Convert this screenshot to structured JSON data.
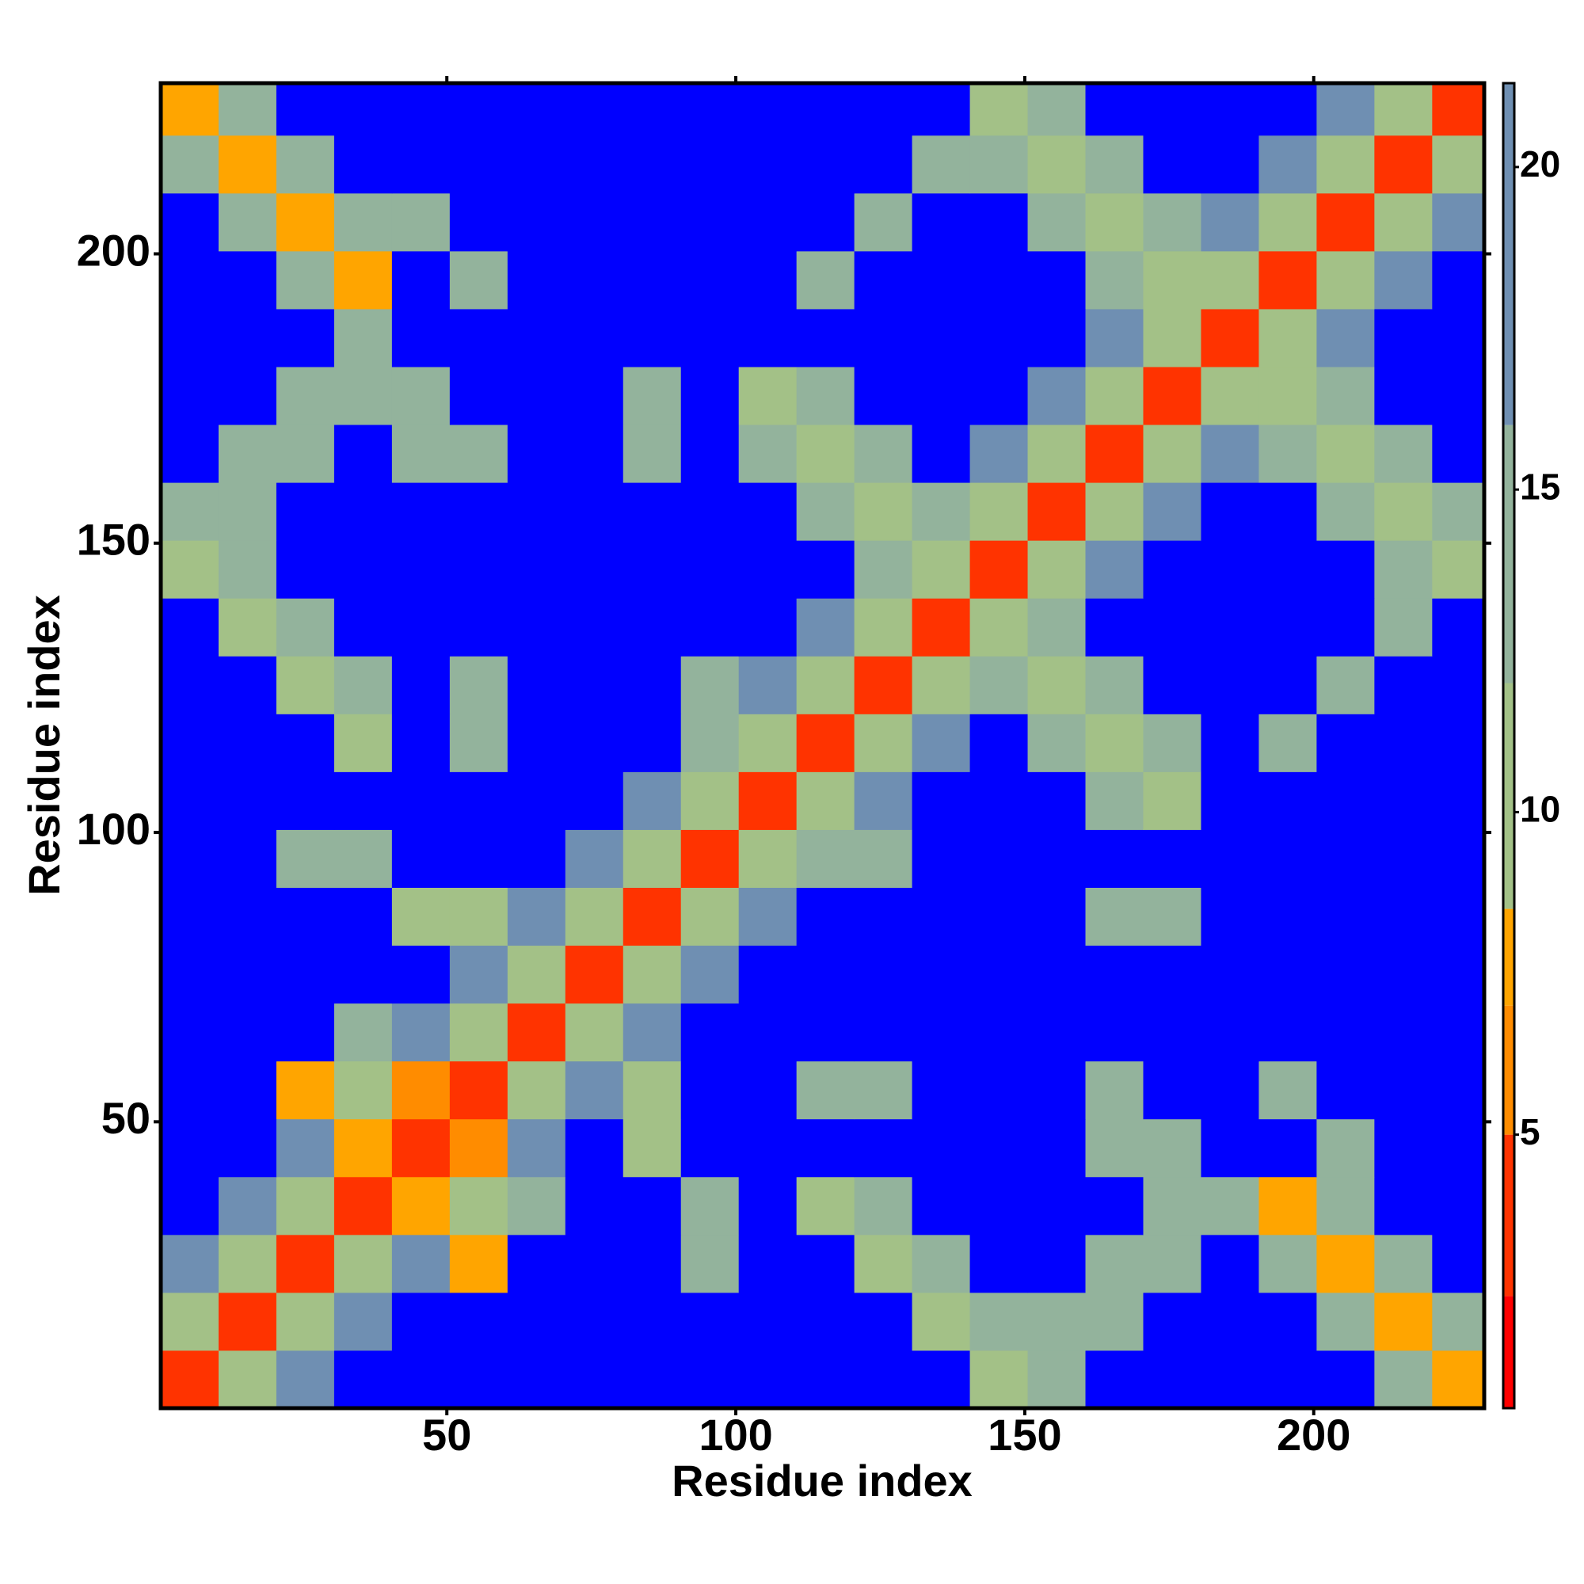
{
  "chart_data": {
    "type": "heatmap",
    "xlabel": "Residue index",
    "ylabel": "Residue index",
    "x": [
      5.5,
      15.5,
      25.5,
      35.5,
      45.5,
      55.5,
      65.5,
      75.5,
      85.5,
      95.5,
      105.5,
      115.5,
      125.5,
      135.5,
      145.5,
      155.5,
      165.5,
      175.5,
      185.5,
      195.5,
      205.5,
      215.5,
      225.5
    ],
    "y": [
      5.5,
      15.5,
      25.5,
      35.5,
      45.5,
      55.5,
      65.5,
      75.5,
      85.5,
      95.5,
      105.5,
      115.5,
      125.5,
      135.5,
      145.5,
      155.5,
      165.5,
      175.5,
      185.5,
      195.5,
      205.5,
      215.5,
      225.5
    ],
    "z": [
      [
        4,
        9,
        17,
        22,
        22,
        22,
        22,
        22,
        22,
        22,
        22,
        22,
        22,
        22,
        12,
        13,
        22,
        22,
        22,
        22,
        22,
        13,
        8
      ],
      [
        9,
        4,
        9,
        17,
        22,
        22,
        22,
        22,
        22,
        22,
        22,
        22,
        22,
        12,
        15,
        15,
        13,
        22,
        22,
        22,
        13,
        8,
        13
      ],
      [
        17,
        9,
        4,
        9,
        17,
        8,
        22,
        22,
        22,
        15,
        22,
        22,
        12,
        15,
        22,
        22,
        15,
        13,
        22,
        13,
        8,
        13,
        22
      ],
      [
        22,
        17,
        9,
        4,
        8,
        9,
        16,
        22,
        22,
        15,
        22,
        12,
        15,
        22,
        22,
        22,
        22,
        15,
        13,
        8,
        13,
        22,
        22
      ],
      [
        22,
        22,
        17,
        8,
        4,
        7,
        17,
        22,
        12,
        22,
        22,
        22,
        22,
        22,
        22,
        22,
        15,
        15,
        22,
        22,
        15,
        22,
        22
      ],
      [
        22,
        22,
        8,
        9,
        7,
        4,
        9,
        17,
        9,
        22,
        22,
        15,
        15,
        22,
        22,
        22,
        15,
        22,
        22,
        15,
        22,
        22,
        22
      ],
      [
        22,
        22,
        22,
        16,
        17,
        9,
        4,
        9,
        17,
        22,
        22,
        22,
        22,
        22,
        22,
        22,
        22,
        22,
        22,
        22,
        22,
        22,
        22
      ],
      [
        22,
        22,
        22,
        22,
        22,
        17,
        9,
        4,
        9,
        17,
        22,
        22,
        22,
        22,
        22,
        22,
        22,
        22,
        22,
        22,
        22,
        22,
        22
      ],
      [
        22,
        22,
        22,
        22,
        12,
        9,
        17,
        9,
        4,
        9,
        17,
        22,
        22,
        22,
        22,
        22,
        15,
        15,
        22,
        22,
        22,
        22,
        22
      ],
      [
        22,
        22,
        15,
        15,
        22,
        22,
        22,
        17,
        9,
        4,
        9,
        15,
        15,
        22,
        22,
        22,
        22,
        22,
        22,
        22,
        22,
        22,
        22
      ],
      [
        22,
        22,
        22,
        22,
        22,
        22,
        22,
        22,
        17,
        9,
        4,
        9,
        17,
        22,
        22,
        22,
        13,
        9,
        22,
        22,
        22,
        22,
        22
      ],
      [
        22,
        22,
        22,
        12,
        22,
        15,
        22,
        22,
        22,
        15,
        9,
        4,
        9,
        17,
        22,
        13,
        9,
        13,
        22,
        14,
        22,
        22,
        22
      ],
      [
        22,
        22,
        12,
        15,
        22,
        15,
        22,
        22,
        22,
        15,
        17,
        9,
        4,
        9,
        13,
        9,
        13,
        22,
        22,
        22,
        14,
        22,
        22
      ],
      [
        22,
        12,
        15,
        22,
        22,
        22,
        22,
        22,
        22,
        22,
        22,
        17,
        9,
        4,
        9,
        13,
        22,
        22,
        22,
        22,
        22,
        14,
        22
      ],
      [
        12,
        15,
        22,
        22,
        22,
        22,
        22,
        22,
        22,
        22,
        22,
        22,
        13,
        9,
        4,
        9,
        17,
        22,
        22,
        22,
        22,
        15,
        11
      ],
      [
        13,
        15,
        22,
        22,
        22,
        22,
        22,
        22,
        22,
        22,
        22,
        13,
        9,
        13,
        9,
        4,
        9,
        17,
        22,
        22,
        15,
        11,
        15
      ],
      [
        22,
        13,
        15,
        22,
        15,
        15,
        22,
        22,
        15,
        22,
        13,
        9,
        13,
        22,
        17,
        9,
        4,
        9,
        17,
        15,
        11,
        15,
        22
      ],
      [
        22,
        22,
        13,
        15,
        15,
        22,
        22,
        22,
        15,
        22,
        9,
        13,
        22,
        22,
        22,
        17,
        9,
        4,
        9,
        11,
        15,
        22,
        22
      ],
      [
        22,
        22,
        22,
        13,
        22,
        22,
        22,
        22,
        22,
        22,
        22,
        22,
        22,
        22,
        22,
        22,
        17,
        9,
        4,
        9,
        17,
        22,
        22
      ],
      [
        22,
        22,
        13,
        8,
        22,
        15,
        22,
        22,
        22,
        22,
        22,
        14,
        22,
        22,
        22,
        22,
        15,
        11,
        9,
        4,
        9,
        17,
        22
      ],
      [
        22,
        13,
        8,
        13,
        15,
        22,
        22,
        22,
        22,
        22,
        22,
        22,
        14,
        22,
        22,
        15,
        11,
        15,
        17,
        9,
        4,
        9,
        17
      ],
      [
        13,
        8,
        13,
        22,
        22,
        22,
        22,
        22,
        22,
        22,
        22,
        22,
        22,
        14,
        15,
        11,
        15,
        22,
        22,
        17,
        9,
        4,
        9
      ],
      [
        8,
        13,
        22,
        22,
        22,
        22,
        22,
        22,
        22,
        22,
        22,
        22,
        22,
        22,
        11,
        15,
        22,
        22,
        22,
        22,
        17,
        9,
        4
      ]
    ],
    "xlim": [
      0.5,
      229.5
    ],
    "ylim": [
      0.5,
      229.5
    ],
    "xticks": [
      50,
      100,
      150,
      200
    ],
    "yticks": [
      50,
      100,
      150,
      200
    ],
    "clim": [
      0.76,
      21.3
    ],
    "cticks": [
      5,
      10,
      15,
      20
    ],
    "colorscale": [
      [
        2.5,
        "#ff0000"
      ],
      [
        5,
        "#ff3300"
      ],
      [
        7,
        "#ff8c00"
      ],
      [
        8.5,
        "#ffa500"
      ],
      [
        12,
        "#a3c187"
      ],
      [
        16,
        "#93b39c"
      ],
      [
        21.3,
        "#6f8fb2"
      ]
    ],
    "over_color": "#0000ff"
  }
}
